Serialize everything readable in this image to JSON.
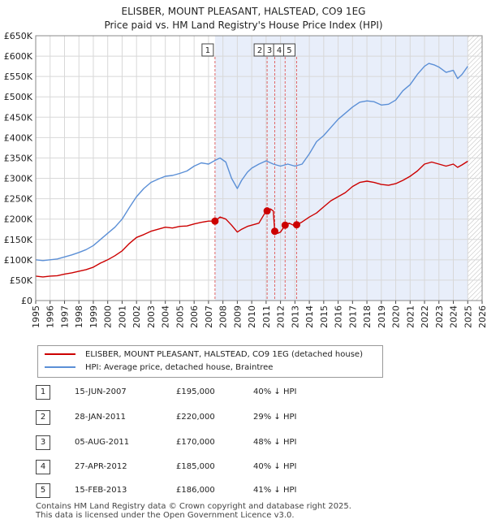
{
  "title": "ELISBER, MOUNT PLEASANT, HALSTEAD, CO9 1EG",
  "subtitle": "Price paid vs. HM Land Registry's House Price Index (HPI)",
  "colors": {
    "property": "#cc0000",
    "hpi": "#5b8fd6",
    "shade": "#e8eefa",
    "grid": "#d8d8d8",
    "marker_line": "#e06666"
  },
  "chart_data": {
    "type": "line",
    "x_range": [
      1995,
      2026
    ],
    "ylim": [
      0,
      650000
    ],
    "y_ticks": [
      "£0",
      "£50K",
      "£100K",
      "£150K",
      "£200K",
      "£250K",
      "£300K",
      "£350K",
      "£400K",
      "£450K",
      "£500K",
      "£550K",
      "£600K",
      "£650K"
    ],
    "x_ticks": [
      "1995",
      "1996",
      "1997",
      "1998",
      "1999",
      "2000",
      "2001",
      "2002",
      "2003",
      "2004",
      "2005",
      "2006",
      "2007",
      "2008",
      "2009",
      "2010",
      "2011",
      "2012",
      "2013",
      "2014",
      "2015",
      "2016",
      "2017",
      "2018",
      "2019",
      "2020",
      "2021",
      "2022",
      "2023",
      "2024",
      "2025",
      "2026"
    ],
    "shaded_from": 2007.45,
    "shaded_to": 2025.0,
    "hatched_from": 2025.0,
    "grid": true,
    "series": [
      {
        "name": "ELISBER, MOUNT PLEASANT, HALSTEAD, CO9 1EG (detached house)",
        "x": [
          1995.0,
          1995.5,
          1996.0,
          1996.5,
          1997.0,
          1997.5,
          1998.0,
          1998.5,
          1999.0,
          1999.5,
          2000.0,
          2000.5,
          2001.0,
          2001.5,
          2002.0,
          2002.5,
          2003.0,
          2003.5,
          2004.0,
          2004.5,
          2005.0,
          2005.5,
          2006.0,
          2006.5,
          2007.0,
          2007.45,
          2007.8,
          2008.2,
          2008.6,
          2009.0,
          2009.3,
          2009.7,
          2010.0,
          2010.5,
          2011.0,
          2011.07,
          2011.3,
          2011.5,
          2011.6,
          2011.8,
          2012.0,
          2012.32,
          2012.6,
          2012.9,
          2013.12,
          2013.5,
          2014.0,
          2014.5,
          2015.0,
          2015.5,
          2016.0,
          2016.5,
          2017.0,
          2017.5,
          2018.0,
          2018.5,
          2019.0,
          2019.5,
          2020.0,
          2020.5,
          2021.0,
          2021.5,
          2022.0,
          2022.5,
          2023.0,
          2023.5,
          2024.0,
          2024.3,
          2024.6,
          2025.0
        ],
        "values": [
          60000,
          58000,
          60000,
          61000,
          65000,
          68000,
          72000,
          76000,
          82000,
          92000,
          100000,
          110000,
          122000,
          140000,
          155000,
          162000,
          170000,
          175000,
          180000,
          178000,
          182000,
          183000,
          188000,
          192000,
          195000,
          195000,
          205000,
          200000,
          185000,
          168000,
          175000,
          182000,
          185000,
          190000,
          220000,
          220000,
          225000,
          220000,
          170000,
          165000,
          168000,
          185000,
          190000,
          185000,
          186000,
          193000,
          205000,
          215000,
          230000,
          245000,
          255000,
          265000,
          280000,
          290000,
          293000,
          290000,
          285000,
          283000,
          287000,
          295000,
          305000,
          318000,
          335000,
          340000,
          335000,
          330000,
          335000,
          327000,
          333000,
          342000
        ]
      },
      {
        "name": "HPI: Average price, detached house, Braintree",
        "x": [
          1995.0,
          1995.5,
          1996.0,
          1996.5,
          1997.0,
          1997.5,
          1998.0,
          1998.5,
          1999.0,
          1999.5,
          2000.0,
          2000.5,
          2001.0,
          2001.5,
          2002.0,
          2002.5,
          2003.0,
          2003.5,
          2004.0,
          2004.5,
          2005.0,
          2005.5,
          2006.0,
          2006.5,
          2007.0,
          2007.5,
          2007.8,
          2008.2,
          2008.6,
          2009.0,
          2009.3,
          2009.7,
          2010.0,
          2010.5,
          2011.0,
          2011.5,
          2012.0,
          2012.5,
          2013.0,
          2013.5,
          2014.0,
          2014.5,
          2015.0,
          2015.5,
          2016.0,
          2016.5,
          2017.0,
          2017.5,
          2018.0,
          2018.5,
          2019.0,
          2019.5,
          2020.0,
          2020.5,
          2021.0,
          2021.5,
          2022.0,
          2022.3,
          2022.7,
          2023.0,
          2023.5,
          2024.0,
          2024.3,
          2024.6,
          2025.0
        ],
        "values": [
          100000,
          98000,
          100000,
          102000,
          107000,
          112000,
          118000,
          125000,
          135000,
          150000,
          165000,
          180000,
          200000,
          228000,
          255000,
          275000,
          290000,
          298000,
          305000,
          307000,
          312000,
          318000,
          330000,
          338000,
          335000,
          345000,
          350000,
          340000,
          300000,
          275000,
          295000,
          315000,
          325000,
          335000,
          343000,
          335000,
          330000,
          335000,
          330000,
          335000,
          360000,
          390000,
          405000,
          425000,
          445000,
          460000,
          475000,
          487000,
          490000,
          488000,
          480000,
          482000,
          492000,
          515000,
          530000,
          555000,
          575000,
          582000,
          578000,
          573000,
          560000,
          565000,
          545000,
          555000,
          575000
        ]
      }
    ],
    "sales": [
      {
        "num": "1",
        "x": 2007.45,
        "value": 195000
      },
      {
        "num": "2",
        "x": 2011.07,
        "value": 220000
      },
      {
        "num": "3",
        "x": 2011.6,
        "value": 170000
      },
      {
        "num": "4",
        "x": 2012.32,
        "value": 185000
      },
      {
        "num": "5",
        "x": 2013.12,
        "value": 186000
      }
    ]
  },
  "legend": {
    "property_label": "ELISBER, MOUNT PLEASANT, HALSTEAD, CO9 1EG (detached house)",
    "hpi_label": "HPI: Average price, detached house, Braintree"
  },
  "transactions": [
    {
      "num": "1",
      "date": "15-JUN-2007",
      "price": "£195,000",
      "hpi": "40% ↓ HPI"
    },
    {
      "num": "2",
      "date": "28-JAN-2011",
      "price": "£220,000",
      "hpi": "29% ↓ HPI"
    },
    {
      "num": "3",
      "date": "05-AUG-2011",
      "price": "£170,000",
      "hpi": "48% ↓ HPI"
    },
    {
      "num": "4",
      "date": "27-APR-2012",
      "price": "£185,000",
      "hpi": "40% ↓ HPI"
    },
    {
      "num": "5",
      "date": "15-FEB-2013",
      "price": "£186,000",
      "hpi": "41% ↓ HPI"
    }
  ],
  "footer": {
    "line1": "Contains HM Land Registry data © Crown copyright and database right 2025.",
    "line2": "This data is licensed under the Open Government Licence v3.0."
  }
}
